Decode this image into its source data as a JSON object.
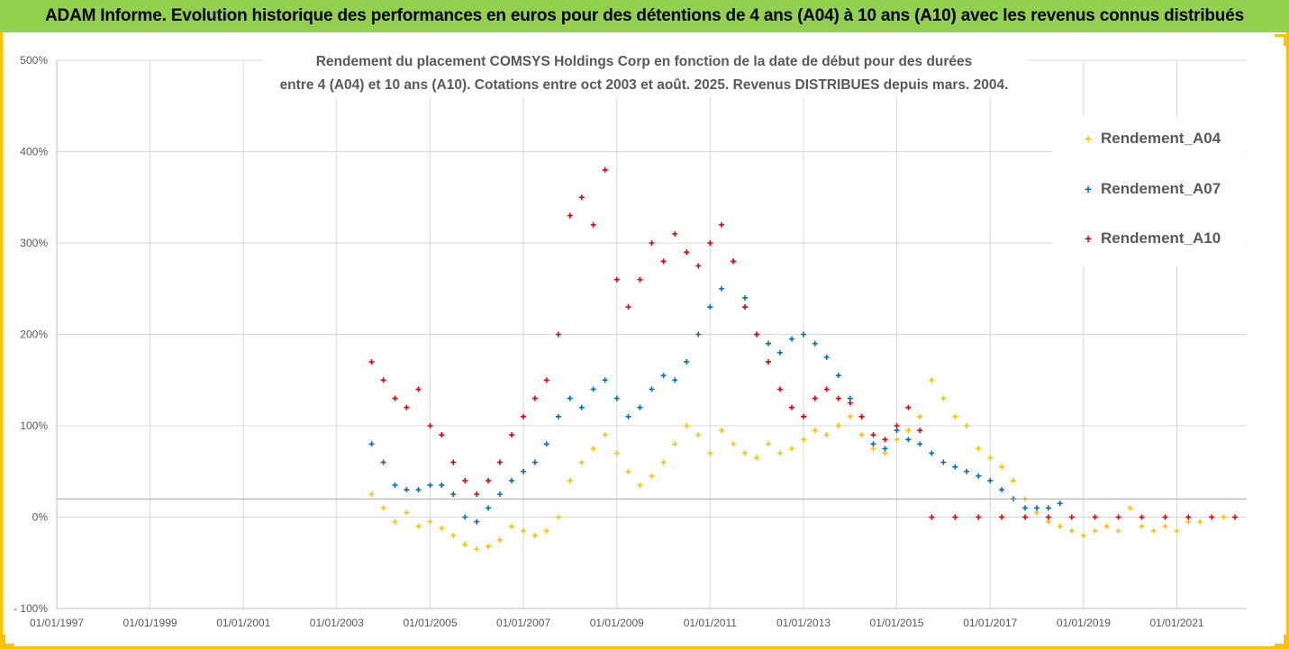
{
  "banner": {
    "title": "ADAM Informe. Evolution historique des performances en euros pour des détentions de 4 ans (A04) à 10 ans (A10) avec les revenus connus distribués"
  },
  "chart_data": {
    "type": "scatter",
    "title_line1": "Rendement du placement COMSYS Holdings Corp en fonction de la date de début pour des durées",
    "title_line2": "entre 4 (A04) et 10 ans (A10). Cotations entre oct 2003 et août. 2025. Revenus DISTRIBUES depuis mars. 2004.",
    "xlabel": "",
    "ylabel": "",
    "x_ticks": [
      "01/01/1997",
      "01/01/1999",
      "01/01/2001",
      "01/01/2003",
      "01/01/2005",
      "01/01/2007",
      "01/01/2009",
      "01/01/2011",
      "01/01/2013",
      "01/01/2015",
      "01/01/2017",
      "01/01/2019",
      "01/01/2021"
    ],
    "y_ticks": [
      "- 100%",
      "0%",
      "100%",
      "200%",
      "300%",
      "400%",
      "500%"
    ],
    "y_tick_values": [
      -100,
      0,
      100,
      200,
      300,
      400,
      500
    ],
    "xlim": [
      "1997-01-01",
      "2022-07-01"
    ],
    "ylim": [
      -100,
      500
    ],
    "reference_line_y": 20,
    "grid": true,
    "legend_position": "top-right",
    "series": [
      {
        "name": "Rendement_A04",
        "color": "#ffc000",
        "points": [
          [
            "2003-10-01",
            25
          ],
          [
            "2004-01-01",
            10
          ],
          [
            "2004-04-01",
            -5
          ],
          [
            "2004-07-01",
            5
          ],
          [
            "2004-10-01",
            -10
          ],
          [
            "2005-01-01",
            -5
          ],
          [
            "2005-04-01",
            -12
          ],
          [
            "2005-07-01",
            -20
          ],
          [
            "2005-10-01",
            -30
          ],
          [
            "2006-01-01",
            -35
          ],
          [
            "2006-04-01",
            -32
          ],
          [
            "2006-07-01",
            -25
          ],
          [
            "2006-10-01",
            -10
          ],
          [
            "2007-01-01",
            -15
          ],
          [
            "2007-04-01",
            -20
          ],
          [
            "2007-07-01",
            -15
          ],
          [
            "2007-10-01",
            0
          ],
          [
            "2008-01-01",
            40
          ],
          [
            "2008-04-01",
            60
          ],
          [
            "2008-07-01",
            75
          ],
          [
            "2008-10-01",
            90
          ],
          [
            "2009-01-01",
            70
          ],
          [
            "2009-04-01",
            50
          ],
          [
            "2009-07-01",
            35
          ],
          [
            "2009-10-01",
            45
          ],
          [
            "2010-01-01",
            60
          ],
          [
            "2010-04-01",
            80
          ],
          [
            "2010-07-01",
            100
          ],
          [
            "2010-10-01",
            90
          ],
          [
            "2011-01-01",
            70
          ],
          [
            "2011-04-01",
            95
          ],
          [
            "2011-07-01",
            80
          ],
          [
            "2011-10-01",
            70
          ],
          [
            "2012-01-01",
            65
          ],
          [
            "2012-04-01",
            80
          ],
          [
            "2012-07-01",
            70
          ],
          [
            "2012-10-01",
            75
          ],
          [
            "2013-01-01",
            85
          ],
          [
            "2013-04-01",
            95
          ],
          [
            "2013-07-01",
            90
          ],
          [
            "2013-10-01",
            100
          ],
          [
            "2014-01-01",
            110
          ],
          [
            "2014-04-01",
            90
          ],
          [
            "2014-07-01",
            75
          ],
          [
            "2014-10-01",
            70
          ],
          [
            "2015-01-01",
            85
          ],
          [
            "2015-04-01",
            95
          ],
          [
            "2015-07-01",
            110
          ],
          [
            "2015-10-01",
            150
          ],
          [
            "2016-01-01",
            130
          ],
          [
            "2016-04-01",
            110
          ],
          [
            "2016-07-01",
            100
          ],
          [
            "2016-10-01",
            75
          ],
          [
            "2017-01-01",
            65
          ],
          [
            "2017-04-01",
            55
          ],
          [
            "2017-07-01",
            40
          ],
          [
            "2017-10-01",
            20
          ],
          [
            "2018-01-01",
            5
          ],
          [
            "2018-04-01",
            -5
          ],
          [
            "2018-07-01",
            -10
          ],
          [
            "2018-10-01",
            -15
          ],
          [
            "2019-01-01",
            -20
          ],
          [
            "2019-04-01",
            -15
          ],
          [
            "2019-07-01",
            -10
          ],
          [
            "2019-10-01",
            -15
          ],
          [
            "2020-01-01",
            10
          ],
          [
            "2020-04-01",
            -10
          ],
          [
            "2020-07-01",
            -15
          ],
          [
            "2020-10-01",
            -10
          ],
          [
            "2021-01-01",
            -15
          ],
          [
            "2021-04-01",
            -5
          ],
          [
            "2021-07-01",
            -5
          ],
          [
            "2021-10-01",
            0
          ],
          [
            "2022-01-01",
            0
          ]
        ]
      },
      {
        "name": "Rendement_A07",
        "color": "#0070c0",
        "points": [
          [
            "2003-10-01",
            80
          ],
          [
            "2004-01-01",
            60
          ],
          [
            "2004-04-01",
            35
          ],
          [
            "2004-07-01",
            30
          ],
          [
            "2004-10-01",
            30
          ],
          [
            "2005-01-01",
            35
          ],
          [
            "2005-04-01",
            35
          ],
          [
            "2005-07-01",
            25
          ],
          [
            "2005-10-01",
            0
          ],
          [
            "2006-01-01",
            -5
          ],
          [
            "2006-04-01",
            10
          ],
          [
            "2006-07-01",
            25
          ],
          [
            "2006-10-01",
            40
          ],
          [
            "2007-01-01",
            50
          ],
          [
            "2007-04-01",
            60
          ],
          [
            "2007-07-01",
            80
          ],
          [
            "2007-10-01",
            110
          ],
          [
            "2008-01-01",
            130
          ],
          [
            "2008-04-01",
            120
          ],
          [
            "2008-07-01",
            140
          ],
          [
            "2008-10-01",
            150
          ],
          [
            "2009-01-01",
            130
          ],
          [
            "2009-04-01",
            110
          ],
          [
            "2009-07-01",
            120
          ],
          [
            "2009-10-01",
            140
          ],
          [
            "2010-01-01",
            155
          ],
          [
            "2010-04-01",
            150
          ],
          [
            "2010-07-01",
            170
          ],
          [
            "2010-10-01",
            200
          ],
          [
            "2011-01-01",
            230
          ],
          [
            "2011-04-01",
            250
          ],
          [
            "2011-07-01",
            280
          ],
          [
            "2011-10-01",
            240
          ],
          [
            "2012-01-01",
            200
          ],
          [
            "2012-04-01",
            190
          ],
          [
            "2012-07-01",
            180
          ],
          [
            "2012-10-01",
            195
          ],
          [
            "2013-01-01",
            200
          ],
          [
            "2013-04-01",
            190
          ],
          [
            "2013-07-01",
            175
          ],
          [
            "2013-10-01",
            155
          ],
          [
            "2014-01-01",
            130
          ],
          [
            "2014-04-01",
            110
          ],
          [
            "2014-07-01",
            80
          ],
          [
            "2014-10-01",
            75
          ],
          [
            "2015-01-01",
            95
          ],
          [
            "2015-04-01",
            85
          ],
          [
            "2015-07-01",
            80
          ],
          [
            "2015-10-01",
            70
          ],
          [
            "2016-01-01",
            60
          ],
          [
            "2016-04-01",
            55
          ],
          [
            "2016-07-01",
            50
          ],
          [
            "2016-10-01",
            45
          ],
          [
            "2017-01-01",
            40
          ],
          [
            "2017-04-01",
            30
          ],
          [
            "2017-07-01",
            20
          ],
          [
            "2017-10-01",
            10
          ],
          [
            "2018-01-01",
            10
          ],
          [
            "2018-04-01",
            10
          ],
          [
            "2018-07-01",
            15
          ]
        ]
      },
      {
        "name": "Rendement_A10",
        "color": "#e60000",
        "points": [
          [
            "2003-10-01",
            170
          ],
          [
            "2004-01-01",
            150
          ],
          [
            "2004-04-01",
            130
          ],
          [
            "2004-07-01",
            120
          ],
          [
            "2004-10-01",
            140
          ],
          [
            "2005-01-01",
            100
          ],
          [
            "2005-04-01",
            90
          ],
          [
            "2005-07-01",
            60
          ],
          [
            "2005-10-01",
            40
          ],
          [
            "2006-01-01",
            25
          ],
          [
            "2006-04-01",
            40
          ],
          [
            "2006-07-01",
            60
          ],
          [
            "2006-10-01",
            90
          ],
          [
            "2007-01-01",
            110
          ],
          [
            "2007-04-01",
            130
          ],
          [
            "2007-07-01",
            150
          ],
          [
            "2007-10-01",
            200
          ],
          [
            "2008-01-01",
            330
          ],
          [
            "2008-04-01",
            350
          ],
          [
            "2008-07-01",
            320
          ],
          [
            "2008-10-01",
            380
          ],
          [
            "2009-01-01",
            260
          ],
          [
            "2009-04-01",
            230
          ],
          [
            "2009-07-01",
            260
          ],
          [
            "2009-10-01",
            300
          ],
          [
            "2010-01-01",
            280
          ],
          [
            "2010-04-01",
            310
          ],
          [
            "2010-07-01",
            290
          ],
          [
            "2010-10-01",
            275
          ],
          [
            "2011-01-01",
            300
          ],
          [
            "2011-04-01",
            320
          ],
          [
            "2011-07-01",
            280
          ],
          [
            "2011-10-01",
            230
          ],
          [
            "2012-01-01",
            200
          ],
          [
            "2012-04-01",
            170
          ],
          [
            "2012-07-01",
            140
          ],
          [
            "2012-10-01",
            120
          ],
          [
            "2013-01-01",
            110
          ],
          [
            "2013-04-01",
            130
          ],
          [
            "2013-07-01",
            140
          ],
          [
            "2013-10-01",
            130
          ],
          [
            "2014-01-01",
            125
          ],
          [
            "2014-04-01",
            110
          ],
          [
            "2014-07-01",
            90
          ],
          [
            "2014-10-01",
            85
          ],
          [
            "2015-01-01",
            100
          ],
          [
            "2015-04-01",
            120
          ],
          [
            "2015-07-01",
            95
          ],
          [
            "2015-10-01",
            0
          ],
          [
            "2016-04-01",
            0
          ],
          [
            "2016-10-01",
            0
          ],
          [
            "2017-04-01",
            0
          ],
          [
            "2017-10-01",
            0
          ],
          [
            "2018-04-01",
            0
          ],
          [
            "2018-10-01",
            0
          ],
          [
            "2019-04-01",
            0
          ],
          [
            "2019-10-01",
            0
          ],
          [
            "2020-04-01",
            0
          ],
          [
            "2020-10-01",
            0
          ],
          [
            "2021-04-01",
            0
          ],
          [
            "2021-10-01",
            0
          ],
          [
            "2022-04-01",
            0
          ]
        ]
      }
    ]
  }
}
